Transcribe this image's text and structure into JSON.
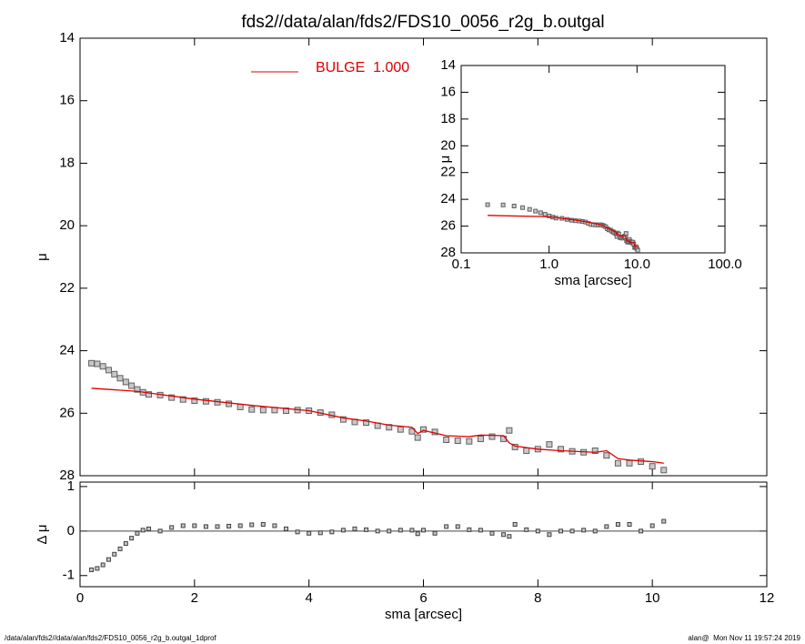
{
  "title": "fds2//data/alan/fds2/FDS10_0056_r2g_b.outgal",
  "footer": {
    "left": "/data/alan/fds2//data/alan/fds2/FDS10_0056_r2g_b.outgal_1dprof",
    "right": "alan@  Mon Nov 11 19:57:24 2019"
  },
  "chart_data": [
    {
      "type": "scatter",
      "ylabel": "μ",
      "xlim": [
        0,
        12
      ],
      "xticks": [
        0,
        2,
        4,
        6,
        8,
        10,
        12
      ],
      "ylim": [
        28,
        14
      ],
      "yticks": [
        14,
        16,
        18,
        20,
        22,
        24,
        26,
        28
      ],
      "legend": "upper-left",
      "series": [
        {
          "color": "#606060",
          "marker": "square",
          "x": [
            0.2,
            0.3,
            0.4,
            0.5,
            0.6,
            0.7,
            0.8,
            0.9,
            1.0,
            1.1,
            1.2,
            1.4,
            1.6,
            1.8,
            2.0,
            2.2,
            2.4,
            2.6,
            2.8,
            3.0,
            3.2,
            3.4,
            3.6,
            3.8,
            4.0,
            4.2,
            4.4,
            4.6,
            4.8,
            5.0,
            5.2,
            5.4,
            5.6,
            5.8,
            5.9,
            6.0,
            6.2,
            6.4,
            6.6,
            6.8,
            7.0,
            7.2,
            7.4,
            7.5,
            7.6,
            7.8,
            8.0,
            8.2,
            8.4,
            8.6,
            8.8,
            9.0,
            9.2,
            9.4,
            9.6,
            9.8,
            10.0,
            10.2
          ],
          "values": [
            24.4,
            24.42,
            24.5,
            24.62,
            24.75,
            24.88,
            25.0,
            25.12,
            25.24,
            25.33,
            25.4,
            25.42,
            25.5,
            25.56,
            25.6,
            25.62,
            25.65,
            25.7,
            25.8,
            25.88,
            25.9,
            25.9,
            25.92,
            25.9,
            25.92,
            25.98,
            26.05,
            26.2,
            26.28,
            26.3,
            26.4,
            26.45,
            26.52,
            26.58,
            26.78,
            26.52,
            26.6,
            26.85,
            26.88,
            26.9,
            26.82,
            26.75,
            26.82,
            26.55,
            27.08,
            27.2,
            27.15,
            27.0,
            27.15,
            27.22,
            27.25,
            27.2,
            27.35,
            27.6,
            27.6,
            27.55,
            27.7,
            27.82
          ]
        },
        {
          "name": "BULGE  1.000",
          "color": "#e00000",
          "marker": "line",
          "x": [
            0.2,
            1.0,
            2.0,
            3.0,
            4.0,
            4.6,
            5.0,
            5.4,
            5.8,
            5.9,
            6.0,
            6.4,
            6.8,
            7.0,
            7.4,
            7.5,
            7.6,
            8.0,
            8.4,
            9.0,
            9.2,
            9.4,
            9.6,
            10.0,
            10.2
          ],
          "values": [
            25.2,
            25.3,
            25.55,
            25.75,
            25.92,
            26.15,
            26.25,
            26.38,
            26.45,
            26.65,
            26.55,
            26.72,
            26.75,
            26.7,
            26.72,
            26.95,
            27.05,
            27.15,
            27.2,
            27.25,
            27.2,
            27.45,
            27.5,
            27.55,
            27.6
          ]
        }
      ]
    },
    {
      "type": "scatter",
      "ylabel": "Δ μ",
      "xlabel": "sma [arcsec]",
      "color": "#404040",
      "xlim": [
        0,
        12
      ],
      "xticks": [
        0,
        2,
        4,
        6,
        8,
        10,
        12
      ],
      "ylim": [
        -1.25,
        1.1
      ],
      "yticks": [
        -1,
        0,
        1
      ],
      "x": [
        0.2,
        0.3,
        0.4,
        0.5,
        0.6,
        0.7,
        0.8,
        0.9,
        1.0,
        1.1,
        1.2,
        1.4,
        1.6,
        1.8,
        2.0,
        2.2,
        2.4,
        2.6,
        2.8,
        3.0,
        3.2,
        3.4,
        3.6,
        3.8,
        4.0,
        4.2,
        4.4,
        4.6,
        4.8,
        5.0,
        5.2,
        5.4,
        5.6,
        5.8,
        5.9,
        6.0,
        6.2,
        6.4,
        6.6,
        6.8,
        7.0,
        7.2,
        7.4,
        7.5,
        7.6,
        7.8,
        8.0,
        8.2,
        8.4,
        8.6,
        8.8,
        9.0,
        9.2,
        9.4,
        9.6,
        9.8,
        10.0,
        10.2
      ],
      "values": [
        -0.87,
        -0.84,
        -0.76,
        -0.64,
        -0.52,
        -0.4,
        -0.28,
        -0.16,
        -0.05,
        0.02,
        0.05,
        0.0,
        0.08,
        0.12,
        0.12,
        0.1,
        0.1,
        0.11,
        0.12,
        0.14,
        0.15,
        0.12,
        0.05,
        -0.02,
        -0.05,
        -0.04,
        -0.02,
        0.02,
        0.05,
        0.03,
        0.0,
        0.0,
        0.02,
        0.02,
        -0.06,
        0.02,
        -0.05,
        0.1,
        0.1,
        0.03,
        0.02,
        -0.05,
        -0.08,
        -0.12,
        0.15,
        0.03,
        0.0,
        -0.08,
        0.0,
        0.0,
        0.02,
        0.0,
        0.1,
        0.15,
        0.15,
        0.0,
        0.12,
        0.22
      ]
    },
    {
      "type": "scatter",
      "xlog": true,
      "ylabel": "μ",
      "xlabel": "sma [arcsec]",
      "xlim": [
        0.1,
        100
      ],
      "xticks": [
        0.1,
        {
          "value": 1,
          "label": "1.0"
        },
        {
          "value": 10,
          "label": "10.0"
        },
        {
          "value": 100,
          "label": "100.0"
        }
      ],
      "ylim": [
        28,
        14
      ],
      "yticks": [
        14,
        16,
        18,
        20,
        22,
        24,
        26,
        28
      ]
    }
  ]
}
